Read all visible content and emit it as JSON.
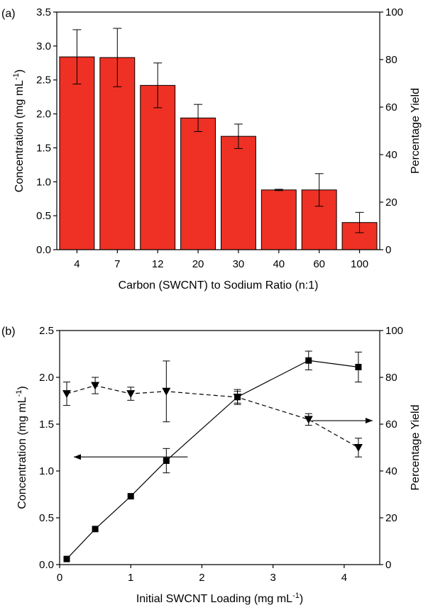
{
  "chart_data": [
    {
      "panel_label": "(a)",
      "type": "bar",
      "categories": [
        "4",
        "7",
        "12",
        "20",
        "30",
        "40",
        "60",
        "100"
      ],
      "values": [
        2.84,
        2.83,
        2.42,
        1.94,
        1.67,
        0.88,
        0.88,
        0.4
      ],
      "errors": [
        0.4,
        0.43,
        0.33,
        0.2,
        0.18,
        0.01,
        0.24,
        0.15
      ],
      "xlabel": "Carbon (SWCNT) to Sodium Ratio (n:1)",
      "ylabel": "Concentration (mg mL",
      "ylabel_sup": "-1",
      "ylabel_suffix": ")",
      "ylim": [
        0,
        3.5
      ],
      "yticks": [
        "0.0",
        "0.5",
        "1.0",
        "1.5",
        "2.0",
        "2.5",
        "3.0",
        "3.5"
      ],
      "y2label": "Percentage Yield",
      "y2lim": [
        0,
        100
      ],
      "y2ticks": [
        "0",
        "20",
        "40",
        "60",
        "80",
        "100"
      ],
      "bar_color": "#ee3124",
      "grid": false
    },
    {
      "panel_label": "(b)",
      "type": "line",
      "xlabel": "Initial SWCNT Loading (mg mL",
      "xlabel_sup": "-1",
      "xlabel_suffix": ")",
      "xlim": [
        0,
        4.5
      ],
      "xticks": [
        "0",
        "1",
        "2",
        "3",
        "4"
      ],
      "ylabel": "Concentration (mg mL",
      "ylabel_sup": "-1",
      "ylabel_suffix": ")",
      "ylim": [
        0,
        2.5
      ],
      "yticks": [
        "0.0",
        "0.5",
        "1.0",
        "1.5",
        "2.0",
        "2.5"
      ],
      "y2label": "Percentage Yield",
      "y2lim": [
        0,
        100
      ],
      "y2ticks": [
        "0",
        "20",
        "40",
        "60",
        "80",
        "100"
      ],
      "grid": false,
      "series": [
        {
          "axis": "left",
          "marker": "square",
          "line": "solid",
          "x": [
            0.1,
            0.5,
            1.0,
            1.5,
            2.5,
            3.5,
            4.2
          ],
          "y": [
            0.06,
            0.38,
            0.73,
            1.11,
            1.79,
            2.18,
            2.11
          ],
          "errors": [
            0.0,
            0.0,
            0.0,
            0.13,
            0.08,
            0.1,
            0.16
          ]
        },
        {
          "axis": "right",
          "marker": "triangle-down",
          "line": "dashed",
          "x": [
            0.1,
            0.5,
            1.0,
            1.5,
            2.5,
            3.5,
            4.2
          ],
          "y": [
            73,
            76.5,
            73,
            74,
            71.5,
            62,
            50
          ],
          "errors": [
            5,
            3.5,
            2.8,
            13,
            2.5,
            2.5,
            4
          ]
        }
      ],
      "annotations": [
        {
          "type": "arrow",
          "points_to": "left axis",
          "series": 1
        },
        {
          "type": "arrow",
          "points_to": "right axis",
          "series": 2
        }
      ]
    }
  ]
}
